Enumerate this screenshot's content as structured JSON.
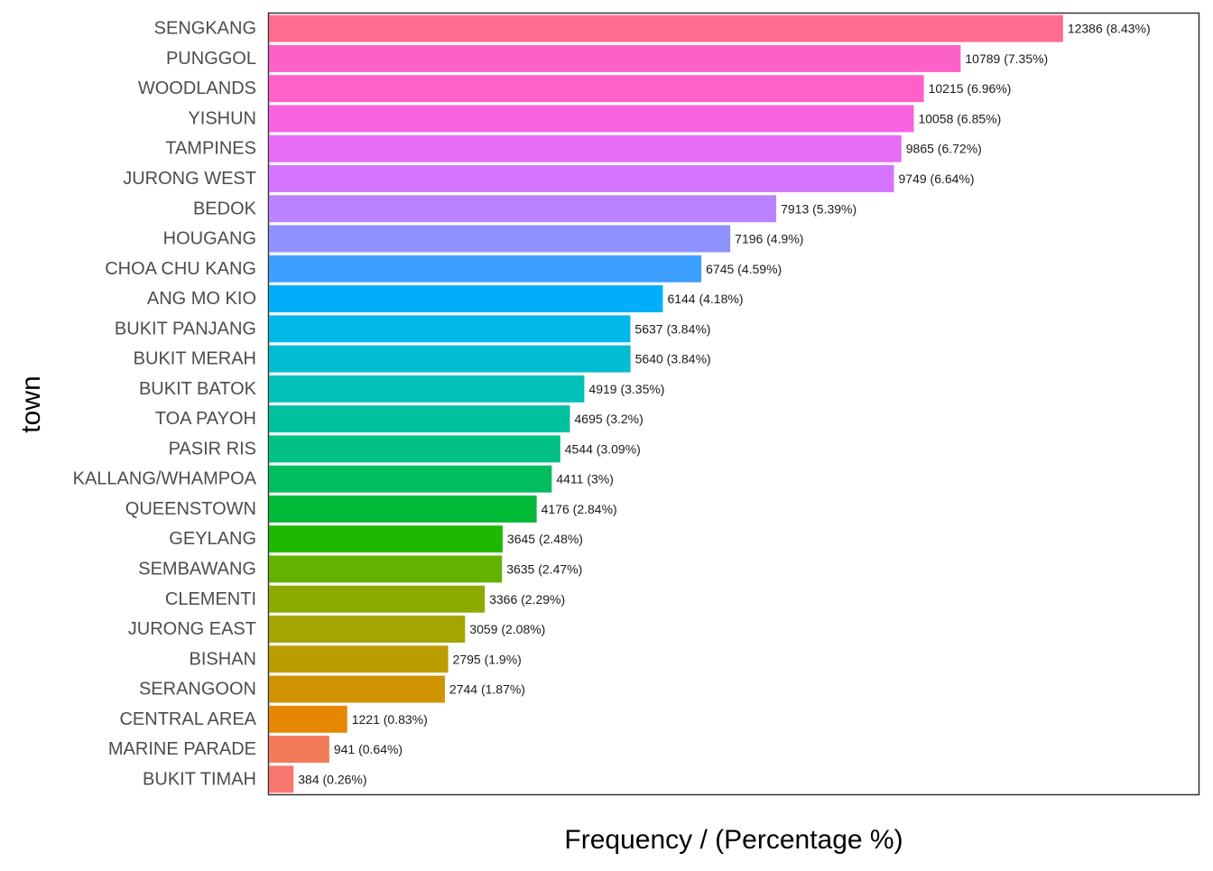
{
  "chart_data": {
    "type": "bar",
    "orientation": "horizontal",
    "xlabel": "Frequency / (Percentage %)",
    "ylabel": "town",
    "xlim": [
      0,
      14500
    ],
    "grid": false,
    "legend": "none",
    "categories": [
      "SENGKANG",
      "PUNGGOL",
      "WOODLANDS",
      "YISHUN",
      "TAMPINES",
      "JURONG WEST",
      "BEDOK",
      "HOUGANG",
      "CHOA CHU KANG",
      "ANG MO KIO",
      "BUKIT PANJANG",
      "BUKIT MERAH",
      "BUKIT BATOK",
      "TOA PAYOH",
      "PASIR RIS",
      "KALLANG/WHAMPOA",
      "QUEENSTOWN",
      "GEYLANG",
      "SEMBAWANG",
      "CLEMENTI",
      "JURONG EAST",
      "BISHAN",
      "SERANGOON",
      "CENTRAL AREA",
      "MARINE PARADE",
      "BUKIT TIMAH"
    ],
    "values": [
      12386,
      10789,
      10215,
      10058,
      9865,
      9749,
      7913,
      7196,
      6745,
      6144,
      5637,
      5640,
      4919,
      4695,
      4544,
      4411,
      4176,
      3645,
      3635,
      3366,
      3059,
      2795,
      2744,
      1221,
      941,
      384
    ],
    "labels": [
      "12386 (8.43%)",
      "10789 (7.35%)",
      "10215 (6.96%)",
      "10058 (6.85%)",
      "9865 (6.72%)",
      "9749 (6.64%)",
      "7913 (5.39%)",
      "7196 (4.9%)",
      "6745 (4.59%)",
      "6144 (4.18%)",
      "5637 (3.84%)",
      "5640 (3.84%)",
      "4919 (3.35%)",
      "4695 (3.2%)",
      "4544 (3.09%)",
      "4411 (3%)",
      "4176 (2.84%)",
      "3645 (2.48%)",
      "3635 (2.47%)",
      "3366 (2.29%)",
      "3059 (2.08%)",
      "2795 (1.9%)",
      "2744 (1.87%)",
      "1221 (0.83%)",
      "941 (0.64%)",
      "384 (0.26%)"
    ],
    "colors": [
      "#FF6C90",
      "#FC61C9",
      "#FF61C8",
      "#F862DF",
      "#E76BF3",
      "#D575FE",
      "#B983FF",
      "#8F91FF",
      "#3D9FFF",
      "#00AEFA",
      "#00B8E7",
      "#00BDD1",
      "#00C0B8",
      "#00C19F",
      "#00C084",
      "#00BD5F",
      "#00BA38",
      "#1EB800",
      "#64B200",
      "#8CAB00",
      "#A3A500",
      "#BB9D00",
      "#D09400",
      "#E58700",
      "#F37B59",
      "#F8766D"
    ]
  }
}
